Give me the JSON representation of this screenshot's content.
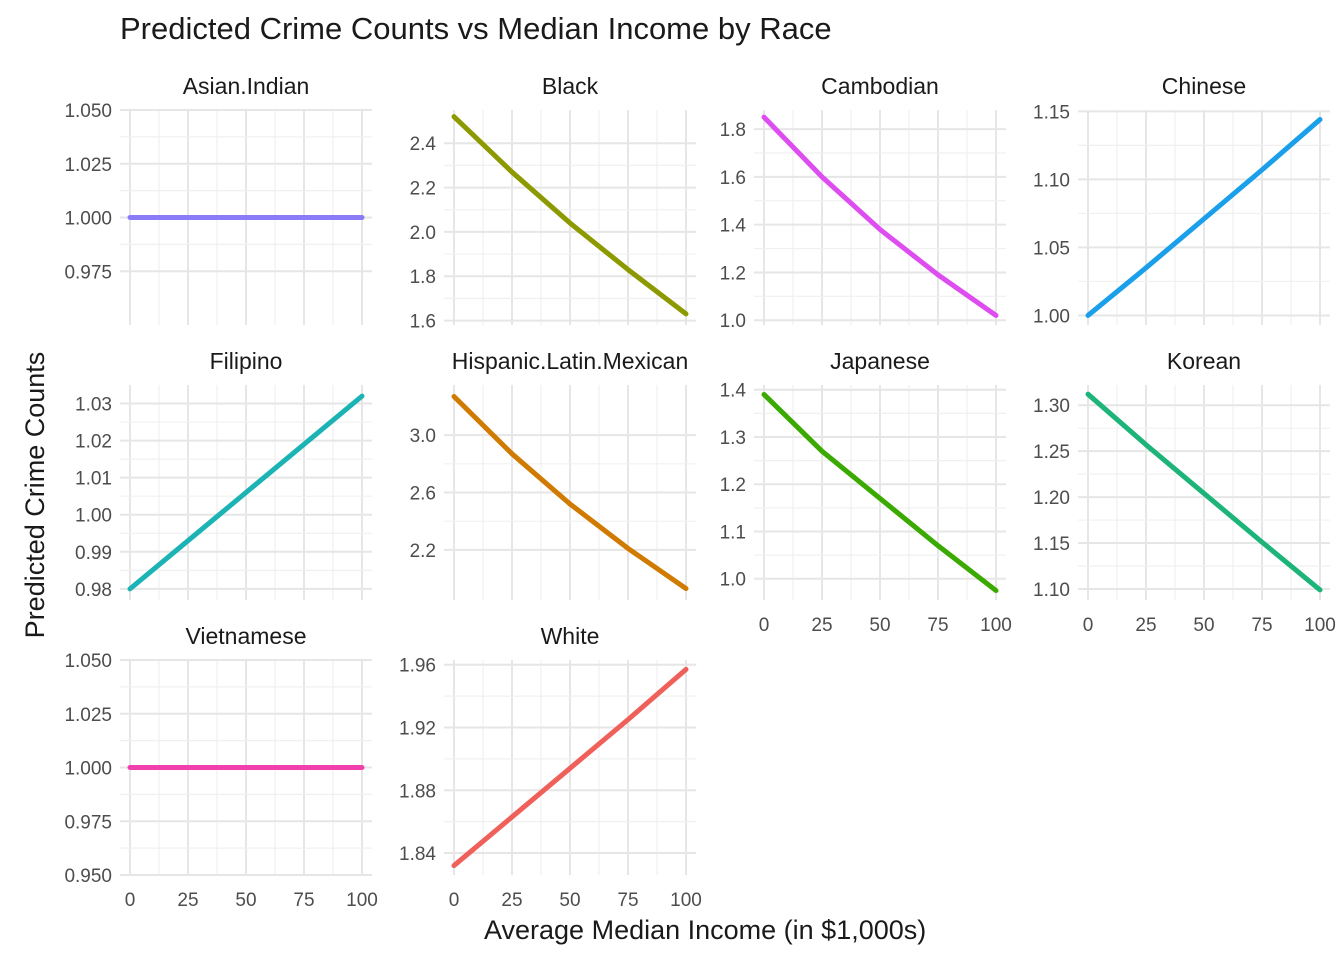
{
  "chart_data": {
    "type": "line",
    "title": "Predicted Crime Counts vs Median Income by Race",
    "xlabel": "Average Median Income (in $1,000s)",
    "ylabel": "Predicted Crime Counts",
    "x_ticks": [
      "0",
      "25",
      "50",
      "75",
      "100"
    ],
    "xlim": [
      0,
      100
    ],
    "grid": true,
    "legend": "none",
    "panels": [
      {
        "name": "Asian.Indian",
        "color": "#8A7BF7",
        "x": [
          0,
          100
        ],
        "y": [
          1.0,
          1.0
        ],
        "ylim": [
          0.95,
          1.05
        ],
        "y_ticks": [
          "1.050",
          "1.025",
          "1.000",
          "0.975"
        ],
        "y_tick_values": [
          1.05,
          1.025,
          1.0,
          0.975
        ]
      },
      {
        "name": "Black",
        "color": "#8C9A00",
        "x": [
          0,
          25,
          50,
          75,
          100
        ],
        "y": [
          2.52,
          2.27,
          2.04,
          1.83,
          1.63
        ],
        "ylim": [
          1.58,
          2.55
        ],
        "y_ticks": [
          "2.4",
          "2.2",
          "2.0",
          "1.8",
          "1.6"
        ],
        "y_tick_values": [
          2.4,
          2.2,
          2.0,
          1.8,
          1.6
        ]
      },
      {
        "name": "Cambodian",
        "color": "#DE4DF0",
        "x": [
          0,
          25,
          50,
          75,
          100
        ],
        "y": [
          1.85,
          1.6,
          1.38,
          1.19,
          1.02
        ],
        "ylim": [
          0.98,
          1.88
        ],
        "y_ticks": [
          "1.8",
          "1.6",
          "1.4",
          "1.2",
          "1.0"
        ],
        "y_tick_values": [
          1.8,
          1.6,
          1.4,
          1.2,
          1.0
        ]
      },
      {
        "name": "Chinese",
        "color": "#1A9FEA",
        "x": [
          0,
          25,
          50,
          75,
          100
        ],
        "y": [
          1.0,
          1.035,
          1.071,
          1.107,
          1.144
        ],
        "ylim": [
          0.993,
          1.151
        ],
        "y_ticks": [
          "1.15",
          "1.10",
          "1.05",
          "1.00"
        ],
        "y_tick_values": [
          1.15,
          1.1,
          1.05,
          1.0
        ]
      },
      {
        "name": "Filipino",
        "color": "#1BB3B3",
        "x": [
          0,
          25,
          50,
          75,
          100
        ],
        "y": [
          0.98,
          0.993,
          1.006,
          1.019,
          1.032
        ],
        "ylim": [
          0.977,
          1.035
        ],
        "y_ticks": [
          "1.03",
          "1.02",
          "1.01",
          "1.00",
          "0.99",
          "0.98"
        ],
        "y_tick_values": [
          1.03,
          1.02,
          1.01,
          1.0,
          0.99,
          0.98
        ]
      },
      {
        "name": "Hispanic.Latin.Mexican",
        "color": "#D17A00",
        "x": [
          0,
          25,
          50,
          75,
          100
        ],
        "y": [
          3.27,
          2.87,
          2.52,
          2.21,
          1.93
        ],
        "ylim": [
          1.85,
          3.35
        ],
        "y_ticks": [
          "3.0",
          "2.6",
          "2.2"
        ],
        "y_tick_values": [
          3.0,
          2.6,
          2.2
        ]
      },
      {
        "name": "Japanese",
        "color": "#3AAA00",
        "x": [
          0,
          25,
          50,
          75,
          100
        ],
        "y": [
          1.39,
          1.27,
          1.17,
          1.07,
          0.975
        ],
        "ylim": [
          0.955,
          1.41
        ],
        "y_ticks": [
          "1.4",
          "1.3",
          "1.2",
          "1.1",
          "1.0"
        ],
        "y_tick_values": [
          1.4,
          1.3,
          1.2,
          1.1,
          1.0
        ]
      },
      {
        "name": "Korean",
        "color": "#1DB47A",
        "x": [
          0,
          25,
          50,
          75,
          100
        ],
        "y": [
          1.312,
          1.257,
          1.204,
          1.151,
          1.099
        ],
        "ylim": [
          1.088,
          1.322
        ],
        "y_ticks": [
          "1.30",
          "1.25",
          "1.20",
          "1.15",
          "1.10"
        ],
        "y_tick_values": [
          1.3,
          1.25,
          1.2,
          1.15,
          1.1
        ]
      },
      {
        "name": "Vietnamese",
        "color": "#F23FAE",
        "x": [
          0,
          100
        ],
        "y": [
          1.0,
          1.0
        ],
        "ylim": [
          0.95,
          1.05
        ],
        "y_ticks": [
          "1.050",
          "1.025",
          "1.000",
          "0.975",
          "0.950"
        ],
        "y_tick_values": [
          1.05,
          1.025,
          1.0,
          0.975,
          0.95
        ]
      },
      {
        "name": "White",
        "color": "#F0605A",
        "x": [
          0,
          25,
          50,
          75,
          100
        ],
        "y": [
          1.832,
          1.863,
          1.894,
          1.925,
          1.957
        ],
        "ylim": [
          1.826,
          1.963
        ],
        "y_ticks": [
          "1.96",
          "1.92",
          "1.88",
          "1.84"
        ],
        "y_tick_values": [
          1.96,
          1.92,
          1.88,
          1.84
        ]
      }
    ]
  }
}
